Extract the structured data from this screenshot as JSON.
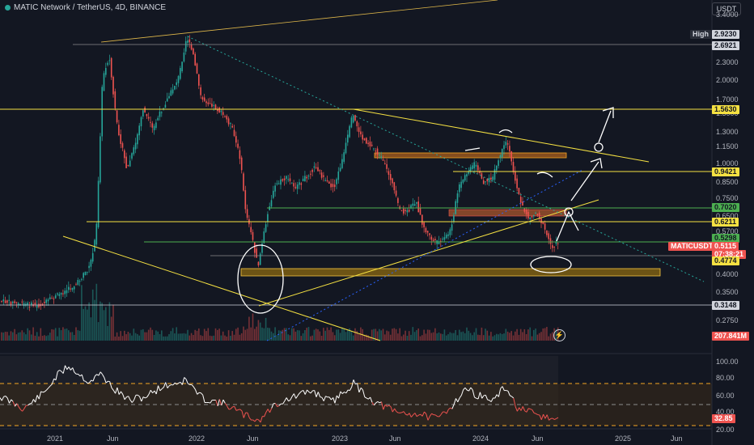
{
  "header": {
    "symbol_title": "MATIC Network / TetherUS, 4D, BINANCE",
    "currency": "USDT"
  },
  "price_axis": {
    "ticks": [
      "3.4000",
      "2.6000",
      "2.3000",
      "2.0000",
      "1.7000",
      "1.5000",
      "1.3000",
      "1.1500",
      "1.0000",
      "0.8500",
      "0.7500",
      "0.6500",
      "0.5700",
      "0.5000",
      "0.4500",
      "0.4000",
      "0.3500",
      "0.3000",
      "0.2750"
    ],
    "high_label": "High",
    "high_value": "2.9230",
    "levels": {
      "l2692": "2.6921",
      "l1563": "1.5630",
      "l0942": "0.9421",
      "l0702": "0.7020",
      "l0621": "0.6211",
      "l0530": "0.5298",
      "l0477": "0.4774",
      "l0315": "0.3148"
    },
    "current_symbol": "MATICUSDT",
    "current_price": "0.5115",
    "countdown": "07:38:21",
    "volume_value": "207.841M"
  },
  "rsi_axis": {
    "ticks": [
      "100.00",
      "80.00",
      "60.00",
      "40.00",
      "20.00"
    ],
    "current_value": "32.85"
  },
  "time_axis": {
    "labels": [
      "2021",
      "Jun",
      "2022",
      "Jun",
      "2023",
      "Jun",
      "2024",
      "Jun",
      "2025",
      "Jun"
    ]
  },
  "colors": {
    "background": "#131722",
    "bull": "#26a69a",
    "bear": "#ef5350",
    "yellow_level": "#f5e142",
    "green_level": "#4caf50",
    "trendline": "#e0b84a",
    "dotted": "#26a69a",
    "zone": "#b8860b",
    "red_zone": "#a0522d",
    "annotation": "#ffffff",
    "rsi_line": "#ffffff",
    "rsi_bear": "#ef5350"
  },
  "icons": {
    "flash": "lightning-icon"
  }
}
